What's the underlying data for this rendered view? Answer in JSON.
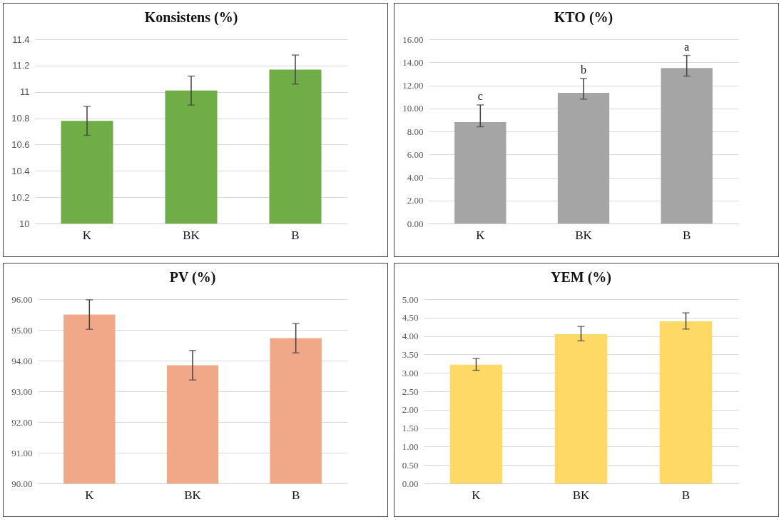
{
  "chart_data": [
    {
      "type": "bar",
      "title": "Konsistens (%)",
      "categories": [
        "K",
        "BK",
        "B"
      ],
      "values": [
        10.78,
        11.01,
        11.17
      ],
      "errors": [
        0.11,
        0.11,
        0.11
      ],
      "color": "#70ad47",
      "ylim": [
        10,
        11.4
      ],
      "yticks": [
        10,
        10.2,
        10.4,
        10.6,
        10.8,
        11,
        11.2,
        11.4
      ],
      "grid": "y"
    },
    {
      "type": "bar",
      "title": "KTO (%)",
      "categories": [
        "K",
        "BK",
        "B"
      ],
      "values": [
        8.8,
        11.35,
        13.5
      ],
      "errors": [
        [
          8.4,
          10.3
        ],
        [
          10.8,
          12.6
        ],
        [
          12.8,
          14.6
        ]
      ],
      "color": "#a5a5a5",
      "ylim": [
        0,
        16
      ],
      "yticks": [
        {
          "value": 0,
          "label": "0.00"
        },
        {
          "value": 2,
          "label": "2.00"
        },
        {
          "value": 4,
          "label": "4.00"
        },
        {
          "value": 6,
          "label": "6.00"
        },
        {
          "value": 8,
          "label": "8.00"
        },
        {
          "value": 10,
          "label": "10.00"
        },
        {
          "value": 12,
          "label": "12.00"
        },
        {
          "value": 14,
          "label": "14.00"
        },
        {
          "value": 16,
          "label": "16.00"
        }
      ],
      "grid": "y",
      "annotations": [
        {
          "text": "c",
          "x": "K",
          "y": 10.3
        },
        {
          "text": "b",
          "x": "BK",
          "y": 12.6
        },
        {
          "text": "a",
          "x": "B",
          "y": 14.6
        }
      ]
    },
    {
      "type": "bar",
      "title": "PV (%)",
      "categories": [
        "K",
        "BK",
        "B"
      ],
      "values": [
        95.5,
        93.85,
        94.73
      ],
      "errors": [
        0.48,
        0.48,
        0.48
      ],
      "color": "#f0a888",
      "ylim": [
        90,
        96
      ],
      "yticks": [
        {
          "value": 90,
          "label": "90.00"
        },
        {
          "value": 91,
          "label": "91.00"
        },
        {
          "value": 92,
          "label": "92.00"
        },
        {
          "value": 93,
          "label": "93.00"
        },
        {
          "value": 94,
          "label": "94.00"
        },
        {
          "value": 95,
          "label": "95.00"
        },
        {
          "value": 96,
          "label": "96.00"
        }
      ],
      "grid": "y"
    },
    {
      "type": "bar",
      "title": "YEM (%)",
      "categories": [
        "K",
        "BK",
        "B"
      ],
      "values": [
        3.22,
        4.05,
        4.4
      ],
      "errors": [
        [
          3.07,
          3.39
        ],
        [
          3.87,
          4.26
        ],
        [
          4.19,
          4.63
        ]
      ],
      "color": "#ffd966",
      "ylim": [
        0,
        5
      ],
      "yticks": [
        {
          "value": 0,
          "label": "0.00"
        },
        {
          "value": 0.5,
          "label": "0.50"
        },
        {
          "value": 1,
          "label": "1.00"
        },
        {
          "value": 1.5,
          "label": "1.50"
        },
        {
          "value": 2,
          "label": "2.00"
        },
        {
          "value": 2.5,
          "label": "2.50"
        },
        {
          "value": 3,
          "label": "3.00"
        },
        {
          "value": 3.5,
          "label": "3.50"
        },
        {
          "value": 4,
          "label": "4.00"
        },
        {
          "value": 4.5,
          "label": "4.50"
        },
        {
          "value": 5,
          "label": "5.00"
        }
      ],
      "grid": "y"
    }
  ]
}
